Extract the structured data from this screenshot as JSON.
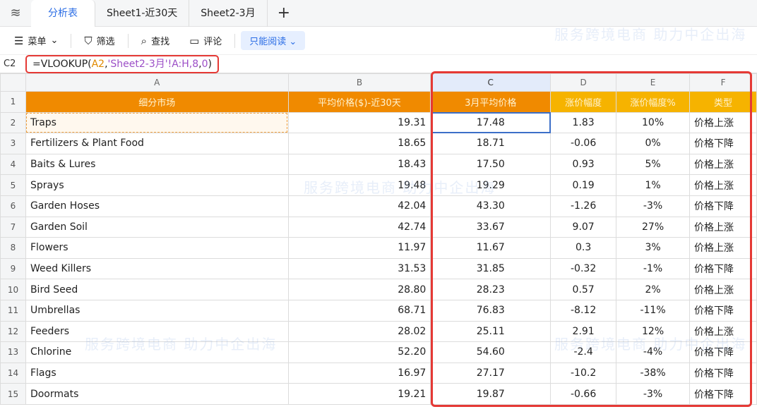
{
  "tabs": {
    "items": [
      "分析表",
      "Sheet1-近30天",
      "Sheet2-3月"
    ],
    "add": "+"
  },
  "toolbar": {
    "menu": "菜单",
    "filter": "筛选",
    "find": "查找",
    "comment": "评论",
    "mode": "只能阅读"
  },
  "formula_bar": {
    "cell": "C2",
    "fn": "=VLOOKUP(",
    "ref": "A2",
    "sep1": ",",
    "sheet": "'Sheet2-3月'",
    "range": "!A:H,",
    "col": "8",
    "sep2": ",",
    "exact": "0",
    "close": ")"
  },
  "columns": [
    "A",
    "B",
    "C",
    "D",
    "E",
    "F"
  ],
  "header": [
    "细分市场",
    "平均价格($)-近30天",
    "3月平均价格",
    "涨价幅度",
    "涨价幅度%",
    "类型"
  ],
  "rows": [
    [
      "Traps",
      "19.31",
      "17.48",
      "1.83",
      "10%",
      "价格上涨"
    ],
    [
      "Fertilizers & Plant Food",
      "18.65",
      "18.71",
      "-0.06",
      "0%",
      "价格下降"
    ],
    [
      "Baits & Lures",
      "18.43",
      "17.50",
      "0.93",
      "5%",
      "价格上涨"
    ],
    [
      "Sprays",
      "19.48",
      "19.29",
      "0.19",
      "1%",
      "价格上涨"
    ],
    [
      "Garden Hoses",
      "42.04",
      "43.30",
      "-1.26",
      "-3%",
      "价格下降"
    ],
    [
      "Garden Soil",
      "42.74",
      "33.67",
      "9.07",
      "27%",
      "价格上涨"
    ],
    [
      "Flowers",
      "11.97",
      "11.67",
      "0.3",
      "3%",
      "价格上涨"
    ],
    [
      "Weed Killers",
      "31.53",
      "31.85",
      "-0.32",
      "-1%",
      "价格下降"
    ],
    [
      "Bird Seed",
      "28.80",
      "28.23",
      "0.57",
      "2%",
      "价格上涨"
    ],
    [
      "Umbrellas",
      "68.71",
      "76.83",
      "-8.12",
      "-11%",
      "价格下降"
    ],
    [
      "Feeders",
      "28.02",
      "25.11",
      "2.91",
      "12%",
      "价格上涨"
    ],
    [
      "Chlorine",
      "52.20",
      "54.60",
      "-2.4",
      "-4%",
      "价格下降"
    ],
    [
      "Flags",
      "16.97",
      "27.17",
      "-10.2",
      "-38%",
      "价格下降"
    ],
    [
      "Doormats",
      "19.21",
      "19.87",
      "-0.66",
      "-3%",
      "价格下降"
    ]
  ],
  "watermark": "服务跨境电商 助力中企出海"
}
